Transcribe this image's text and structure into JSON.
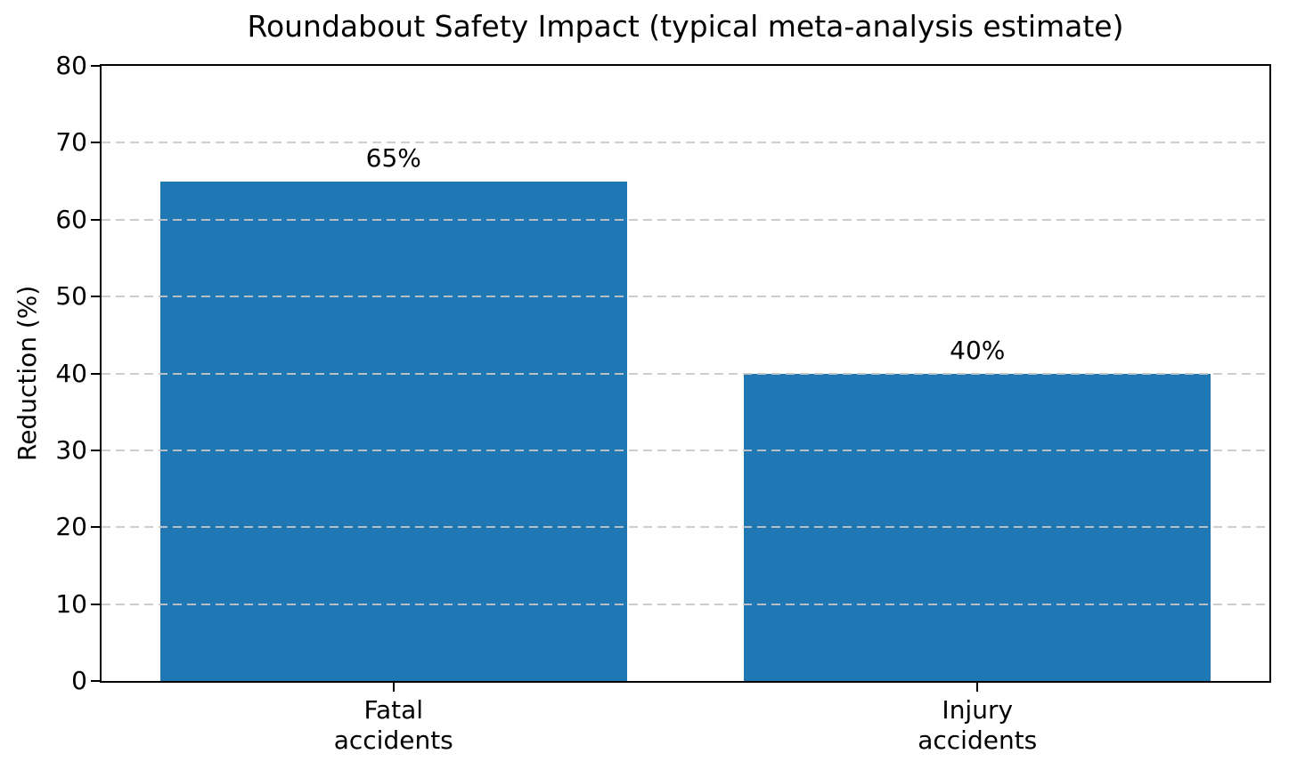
{
  "chart_data": {
    "type": "bar",
    "title": "Roundabout Safety Impact (typical meta-analysis estimate)",
    "xlabel": "",
    "ylabel": "Reduction (%)",
    "categories": [
      "Fatal\naccidents",
      "Injury\naccidents"
    ],
    "values": [
      65,
      40
    ],
    "value_labels": [
      "65%",
      "40%"
    ],
    "series": [
      {
        "name": "Reduction",
        "values": [
          65,
          40
        ]
      }
    ],
    "ylim": [
      0,
      80
    ],
    "yticks": [
      0,
      10,
      20,
      30,
      40,
      50,
      60,
      70,
      80
    ],
    "grid": "horizontal-dashed",
    "grid_on": true,
    "legend": "none",
    "bar_width_ratio": 0.8,
    "colors": {
      "bar": "#1f77b4",
      "grid": "#c8c8c8",
      "axis": "#000000",
      "text": "#000000",
      "background": "#ffffff"
    }
  }
}
